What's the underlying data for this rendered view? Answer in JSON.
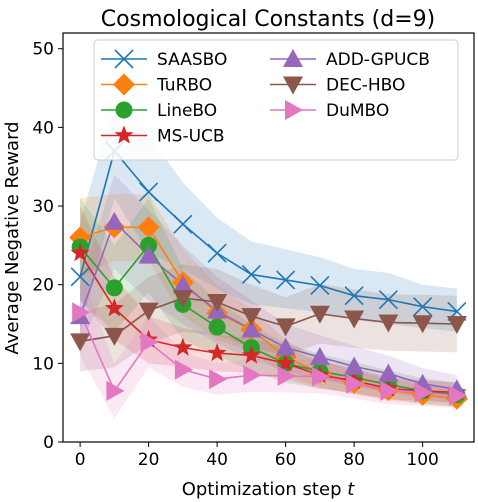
{
  "chart_data": {
    "type": "line",
    "title": "Cosmological Constants (d=9)",
    "xlabel": "Optimization step",
    "xlabel_var": "t",
    "ylabel": "Average Negative Reward",
    "xlim": [
      -5,
      115
    ],
    "ylim": [
      0,
      52
    ],
    "xticks": [
      0,
      20,
      40,
      60,
      80,
      100
    ],
    "yticks": [
      0,
      10,
      20,
      30,
      40,
      50
    ],
    "grid": false,
    "legend_position": "top-right",
    "legend_columns": 2,
    "x": [
      0,
      10,
      20,
      30,
      40,
      50,
      60,
      70,
      80,
      90,
      100,
      110
    ],
    "series": [
      {
        "name": "SAASBO",
        "color": "#1f77b4",
        "marker": "x",
        "values": [
          21.0,
          37.0,
          31.8,
          27.7,
          24.0,
          21.3,
          20.6,
          19.9,
          18.6,
          18.1,
          17.2,
          16.6
        ],
        "band": [
          [
            14.0,
            28.0
          ],
          [
            31.0,
            43.0
          ],
          [
            24.0,
            39.0
          ],
          [
            22.0,
            33.0
          ],
          [
            19.5,
            28.5
          ],
          [
            17.5,
            25.5
          ],
          [
            17.0,
            24.5
          ],
          [
            16.5,
            23.5
          ],
          [
            15.5,
            22.0
          ],
          [
            15.0,
            21.5
          ],
          [
            14.5,
            20.0
          ],
          [
            14.0,
            19.5
          ]
        ]
      },
      {
        "name": "TuRBO",
        "color": "#ff7f0e",
        "marker": "D",
        "values": [
          26.0,
          27.3,
          27.3,
          20.3,
          16.4,
          14.3,
          10.8,
          8.8,
          7.5,
          6.6,
          6.0,
          5.5
        ],
        "band": [
          [
            21.0,
            31.0
          ],
          [
            23.0,
            31.5
          ],
          [
            23.0,
            31.5
          ],
          [
            16.0,
            24.5
          ],
          [
            13.0,
            20.0
          ],
          [
            11.5,
            17.0
          ],
          [
            8.5,
            13.0
          ],
          [
            7.0,
            10.5
          ],
          [
            6.0,
            9.0
          ],
          [
            5.3,
            8.0
          ],
          [
            4.8,
            7.2
          ],
          [
            4.4,
            6.6
          ]
        ]
      },
      {
        "name": "LineBO",
        "color": "#2ca02c",
        "marker": "o",
        "values": [
          24.8,
          19.6,
          25.0,
          17.5,
          14.6,
          12.0,
          10.0,
          9.0,
          8.2,
          7.3,
          6.5,
          6.0
        ],
        "band": [
          [
            18.0,
            31.0
          ],
          [
            14.0,
            25.0
          ],
          [
            19.0,
            31.0
          ],
          [
            13.0,
            22.0
          ],
          [
            11.0,
            18.0
          ],
          [
            9.0,
            15.0
          ],
          [
            7.5,
            12.5
          ],
          [
            6.8,
            11.2
          ],
          [
            6.2,
            10.2
          ],
          [
            5.5,
            9.1
          ],
          [
            4.9,
            8.1
          ],
          [
            4.5,
            7.5
          ]
        ]
      },
      {
        "name": "MS-UCB",
        "color": "#d62728",
        "marker": "*",
        "values": [
          24.0,
          17.0,
          13.0,
          12.0,
          11.3,
          11.0,
          10.0,
          8.5,
          7.8,
          6.8,
          6.5,
          6.3
        ],
        "band": [
          [
            18.0,
            30.0
          ],
          [
            13.0,
            21.0
          ],
          [
            10.0,
            16.0
          ],
          [
            9.5,
            14.5
          ],
          [
            9.0,
            13.6
          ],
          [
            8.8,
            13.2
          ],
          [
            8.0,
            12.0
          ],
          [
            6.8,
            10.2
          ],
          [
            6.2,
            9.4
          ],
          [
            5.4,
            8.2
          ],
          [
            5.2,
            7.8
          ],
          [
            5.0,
            7.6
          ]
        ]
      },
      {
        "name": "ADD-GPUCB",
        "color": "#9467bd",
        "marker": "^",
        "values": [
          16.0,
          28.0,
          23.7,
          20.0,
          16.7,
          14.3,
          12.0,
          10.8,
          9.6,
          8.7,
          7.4,
          6.7
        ],
        "band": [
          [
            12.0,
            20.0
          ],
          [
            22.0,
            34.0
          ],
          [
            18.0,
            29.5
          ],
          [
            15.0,
            25.0
          ],
          [
            12.5,
            21.0
          ],
          [
            10.5,
            18.0
          ],
          [
            9.0,
            15.0
          ],
          [
            8.0,
            13.6
          ],
          [
            7.0,
            12.2
          ],
          [
            6.4,
            11.0
          ],
          [
            5.4,
            9.4
          ],
          [
            4.9,
            8.5
          ]
        ]
      },
      {
        "name": "DEC-HBO",
        "color": "#8c564b",
        "marker": "v",
        "values": [
          12.8,
          13.5,
          16.7,
          18.3,
          17.8,
          16.0,
          14.7,
          16.3,
          15.7,
          15.2,
          15.1,
          15.0
        ],
        "band": [
          [
            9.0,
            16.6
          ],
          [
            9.5,
            17.5
          ],
          [
            12.5,
            21.0
          ],
          [
            14.0,
            22.6
          ],
          [
            13.6,
            22.0
          ],
          [
            12.0,
            20.0
          ],
          [
            11.0,
            18.4
          ],
          [
            12.5,
            20.1
          ],
          [
            12.0,
            19.4
          ],
          [
            11.6,
            18.8
          ],
          [
            11.5,
            18.7
          ],
          [
            11.4,
            18.6
          ]
        ]
      },
      {
        "name": "DuMBO",
        "color": "#e377c2",
        "marker": ">",
        "values": [
          16.5,
          6.5,
          12.7,
          9.2,
          8.0,
          8.5,
          8.4,
          8.3,
          7.4,
          6.5,
          6.3,
          5.9
        ],
        "band": [
          [
            11.0,
            22.0
          ],
          [
            3.0,
            10.0
          ],
          [
            9.5,
            16.0
          ],
          [
            7.0,
            11.4
          ],
          [
            6.0,
            10.0
          ],
          [
            6.4,
            10.6
          ],
          [
            6.3,
            10.5
          ],
          [
            6.2,
            10.4
          ],
          [
            5.5,
            9.3
          ],
          [
            4.8,
            8.2
          ],
          [
            4.6,
            8.0
          ],
          [
            4.3,
            7.5
          ]
        ]
      }
    ]
  }
}
